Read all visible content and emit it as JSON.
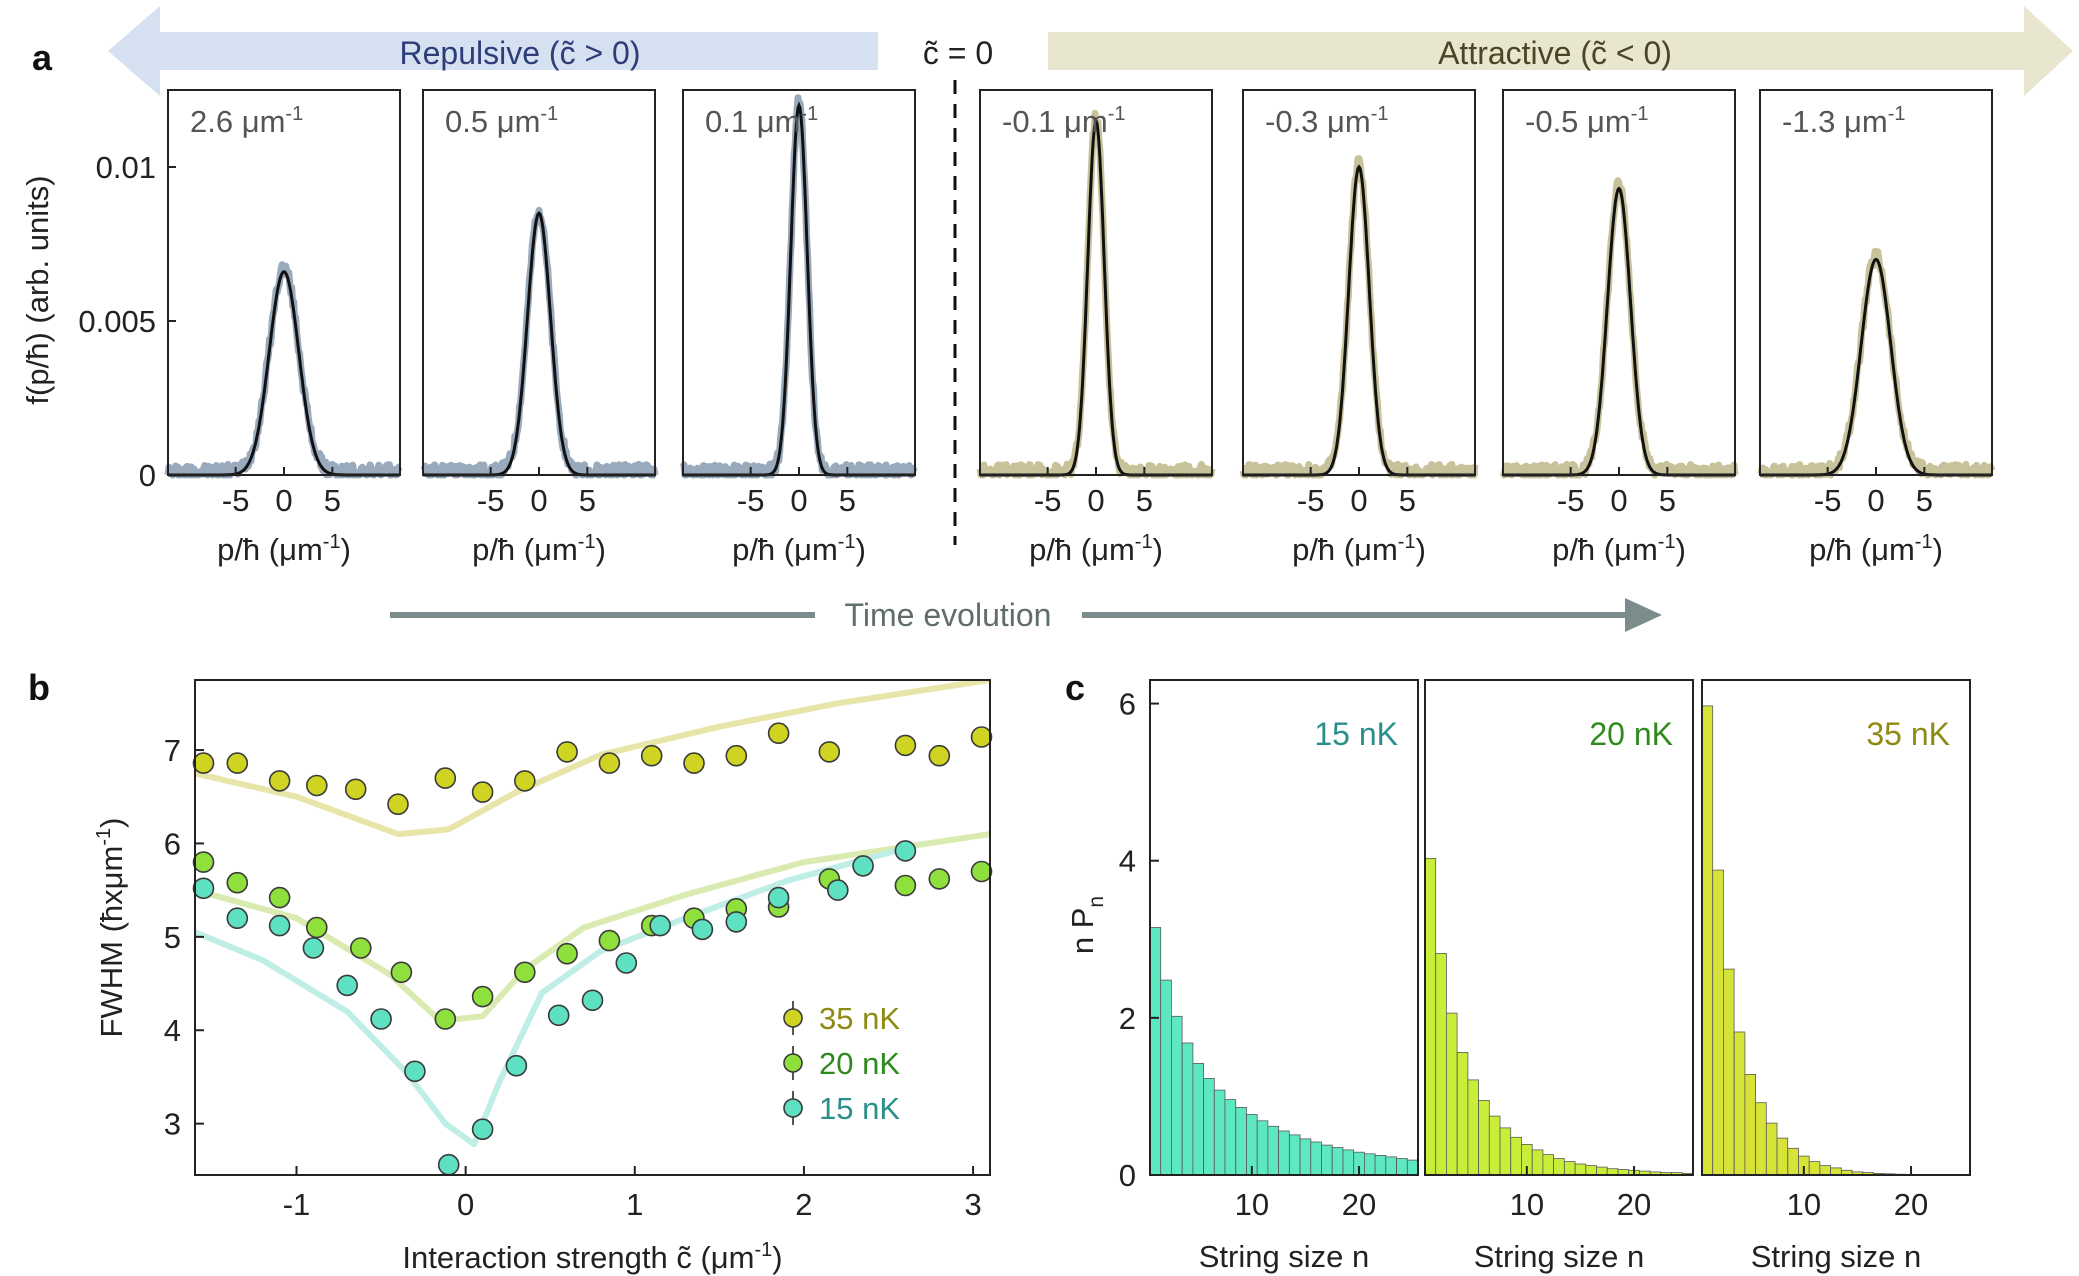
{
  "panel_labels": {
    "a": "a",
    "b": "b",
    "c": "c"
  },
  "header": {
    "repulsive": "Repulsive (c̃ > 0)",
    "zero": "c̃ = 0",
    "attractive": "Attractive (c̃ < 0)",
    "time": "Time evolution"
  },
  "colors": {
    "repulsive_band": "#d5e1f0",
    "repulsive_text": "#2d3d7a",
    "attractive_band": "#e8e6cf",
    "attractive_text": "#4a4526",
    "time_arrow": "#7c8c8c",
    "rep_data": "#9aaabd",
    "att_data": "#c8c29a",
    "fit": "#111111"
  },
  "chart_data": [
    {
      "type": "line",
      "panel": "a",
      "ylabel": "f(p/ħ) (arb. units)",
      "xlabel": "p/ħ (μm⁻¹)",
      "xlabel_main": "p/ħ (μm",
      "xlabel_sup": "-1",
      "xlabel_end": ")",
      "yticks": [
        0,
        0.005,
        0.01
      ],
      "ytick_labels": [
        "0",
        "0.005",
        "0.01"
      ],
      "xticks": [
        -5,
        0,
        5
      ],
      "xtick_labels": [
        "-5",
        "0",
        "5"
      ],
      "xlim": [
        -12,
        12
      ],
      "ylim": [
        0,
        0.0125
      ],
      "subplots": [
        {
          "label": "2.6 μm",
          "label_sup": "-1",
          "type": "repulsive",
          "peak": 0.0066,
          "width": 3.6
        },
        {
          "label": "0.5 μm",
          "label_sup": "-1",
          "type": "repulsive",
          "peak": 0.0085,
          "width": 2.8
        },
        {
          "label": "0.1 μm",
          "label_sup": "-1",
          "type": "repulsive",
          "peak": 0.012,
          "width": 2.0
        },
        {
          "label": "-0.1 μm",
          "label_sup": "-1",
          "type": "attractive",
          "peak": 0.0115,
          "width": 2.0
        },
        {
          "label": "-0.3 μm",
          "label_sup": "-1",
          "type": "attractive",
          "peak": 0.01,
          "width": 2.5
        },
        {
          "label": "-0.5 μm",
          "label_sup": "-1",
          "type": "attractive",
          "peak": 0.0093,
          "width": 2.8
        },
        {
          "label": "-1.3 μm",
          "label_sup": "-1",
          "type": "attractive",
          "peak": 0.007,
          "width": 3.6
        }
      ]
    },
    {
      "type": "scatter",
      "panel": "b",
      "xlabel": "Interaction strength c̃ (μm⁻¹)",
      "xlabel_main": "Interaction strength c̃  (μm",
      "xlabel_sup": "-1",
      "xlabel_end": ")",
      "ylabel": "FWHM (ħxμm⁻¹)",
      "ylabel_main": "FWHM  (ħxμm",
      "ylabel_sup": "-1",
      "ylabel_end": ")",
      "xlim": [
        -1.6,
        3.1
      ],
      "ylim": [
        2.45,
        7.75
      ],
      "xticks": [
        -1,
        0,
        1,
        2,
        3
      ],
      "xtick_labels": [
        "-1",
        "0",
        "1",
        "2",
        "3"
      ],
      "yticks": [
        3,
        4,
        5,
        6,
        7
      ],
      "ytick_labels": [
        "3",
        "4",
        "5",
        "6",
        "7"
      ],
      "legend_position": "bottom-right",
      "series": [
        {
          "name": "35 nK",
          "color": "#cfd321",
          "line_color": "#e8e5a8",
          "text_color": "#8f8a12",
          "points": [
            [
              -1.55,
              6.86
            ],
            [
              -1.35,
              6.86
            ],
            [
              -1.1,
              6.67
            ],
            [
              -0.88,
              6.62
            ],
            [
              -0.65,
              6.58
            ],
            [
              -0.4,
              6.42
            ],
            [
              -0.12,
              6.7
            ],
            [
              0.1,
              6.55
            ],
            [
              0.35,
              6.67
            ],
            [
              0.6,
              6.98
            ],
            [
              0.85,
              6.86
            ],
            [
              1.1,
              6.94
            ],
            [
              1.35,
              6.86
            ],
            [
              1.6,
              6.94
            ],
            [
              1.85,
              7.18
            ],
            [
              2.15,
              6.98
            ],
            [
              2.6,
              7.05
            ],
            [
              2.8,
              6.94
            ],
            [
              3.05,
              7.14
            ]
          ],
          "model": [
            [
              -1.6,
              6.75
            ],
            [
              -1.0,
              6.5
            ],
            [
              -0.4,
              6.1
            ],
            [
              -0.1,
              6.15
            ],
            [
              0.3,
              6.55
            ],
            [
              0.8,
              6.95
            ],
            [
              1.5,
              7.25
            ],
            [
              2.2,
              7.5
            ],
            [
              3.1,
              7.75
            ]
          ]
        },
        {
          "name": "20 nK",
          "color": "#8fe03c",
          "line_color": "#d9ebb0",
          "text_color": "#2e8a1d",
          "points": [
            [
              -1.55,
              5.8
            ],
            [
              -1.35,
              5.58
            ],
            [
              -1.1,
              5.42
            ],
            [
              -0.88,
              5.1
            ],
            [
              -0.62,
              4.88
            ],
            [
              -0.38,
              4.62
            ],
            [
              -0.12,
              4.12
            ],
            [
              0.1,
              4.36
            ],
            [
              0.35,
              4.62
            ],
            [
              0.6,
              4.82
            ],
            [
              0.85,
              4.96
            ],
            [
              1.1,
              5.12
            ],
            [
              1.35,
              5.2
            ],
            [
              1.6,
              5.3
            ],
            [
              1.85,
              5.32
            ],
            [
              2.15,
              5.62
            ],
            [
              2.6,
              5.55
            ],
            [
              2.8,
              5.62
            ],
            [
              3.05,
              5.7
            ]
          ],
          "model": [
            [
              -1.6,
              5.5
            ],
            [
              -1.0,
              5.2
            ],
            [
              -0.45,
              4.6
            ],
            [
              -0.15,
              4.1
            ],
            [
              0.1,
              4.15
            ],
            [
              0.35,
              4.65
            ],
            [
              0.7,
              5.1
            ],
            [
              1.3,
              5.45
            ],
            [
              2.0,
              5.8
            ],
            [
              3.1,
              6.1
            ]
          ]
        },
        {
          "name": "15 nK",
          "color": "#5ee0c2",
          "line_color": "#bfeee6",
          "text_color": "#2a8f8a",
          "points": [
            [
              -1.55,
              5.52
            ],
            [
              -1.35,
              5.2
            ],
            [
              -1.1,
              5.12
            ],
            [
              -0.9,
              4.88
            ],
            [
              -0.7,
              4.48
            ],
            [
              -0.5,
              4.12
            ],
            [
              -0.3,
              3.56
            ],
            [
              -0.1,
              2.56
            ],
            [
              0.1,
              2.94
            ],
            [
              0.3,
              3.62
            ],
            [
              0.55,
              4.16
            ],
            [
              0.75,
              4.32
            ],
            [
              0.95,
              4.72
            ],
            [
              1.15,
              5.12
            ],
            [
              1.4,
              5.08
            ],
            [
              1.6,
              5.16
            ],
            [
              1.85,
              5.42
            ],
            [
              2.2,
              5.5
            ],
            [
              2.35,
              5.76
            ],
            [
              2.6,
              5.92
            ]
          ],
          "model": [
            [
              -1.6,
              5.05
            ],
            [
              -1.2,
              4.75
            ],
            [
              -0.7,
              4.2
            ],
            [
              -0.35,
              3.55
            ],
            [
              -0.12,
              3.0
            ],
            [
              0.05,
              2.78
            ],
            [
              0.2,
              3.45
            ],
            [
              0.45,
              4.4
            ],
            [
              0.8,
              4.85
            ],
            [
              1.3,
              5.2
            ],
            [
              1.9,
              5.6
            ],
            [
              2.6,
              5.95
            ]
          ]
        }
      ]
    },
    {
      "type": "bar",
      "panel": "c",
      "ylabel": "n P",
      "ylabel_sub": "n",
      "xlabel": "String size n",
      "xticks": [
        10,
        20
      ],
      "xtick_labels": [
        "10",
        "20"
      ],
      "yticks": [
        0,
        2,
        4,
        6
      ],
      "ytick_labels": [
        "0",
        "2",
        "4",
        "6"
      ],
      "ylim": [
        0,
        6.3
      ],
      "xlim": [
        0.5,
        25.5
      ],
      "subplots": [
        {
          "label": "15 nK",
          "color": "#5de8c2",
          "text_color": "#2a8f8a",
          "values": [
            3.15,
            2.48,
            2.02,
            1.68,
            1.42,
            1.23,
            1.08,
            0.96,
            0.86,
            0.77,
            0.69,
            0.62,
            0.56,
            0.51,
            0.46,
            0.42,
            0.38,
            0.35,
            0.32,
            0.29,
            0.27,
            0.25,
            0.23,
            0.21,
            0.19
          ]
        },
        {
          "label": "20 nK",
          "color": "#c8ee3a",
          "text_color": "#2e8a1d",
          "values": [
            4.03,
            2.82,
            2.06,
            1.56,
            1.21,
            0.95,
            0.75,
            0.6,
            0.48,
            0.39,
            0.32,
            0.26,
            0.21,
            0.17,
            0.14,
            0.12,
            0.1,
            0.08,
            0.07,
            0.06,
            0.05,
            0.04,
            0.03,
            0.03,
            0.02
          ]
        },
        {
          "label": "35 nK",
          "color": "#d8e33a",
          "text_color": "#8f8a12",
          "values": [
            5.97,
            3.88,
            2.62,
            1.82,
            1.28,
            0.92,
            0.66,
            0.47,
            0.34,
            0.24,
            0.17,
            0.12,
            0.09,
            0.06,
            0.04,
            0.03,
            0.02,
            0.015,
            0.01,
            0.008,
            0.005,
            0.004,
            0.003,
            0.002,
            0.001
          ]
        }
      ]
    }
  ]
}
